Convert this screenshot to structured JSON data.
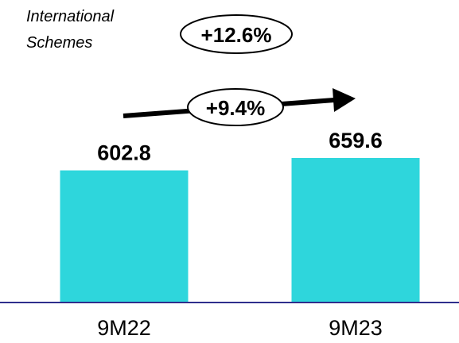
{
  "subtitle": {
    "line1": "International",
    "line2": "Schemes"
  },
  "total_growth": "+12.6%",
  "period_growth": "+9.4%",
  "colors": {
    "bar": "#2ED6DC",
    "axis": "#2E2E8C",
    "text": "#000000"
  },
  "chart_data": {
    "type": "bar",
    "categories": [
      "9M22",
      "9M23"
    ],
    "values": [
      602.8,
      659.6
    ],
    "data_labels": [
      "602.8",
      "659.6"
    ],
    "annotations": [
      "+12.6%",
      "+9.4%"
    ],
    "title": "",
    "xlabel": "",
    "ylabel": "",
    "ylim": [
      0,
      659.6
    ],
    "grid": false,
    "legend": "none"
  }
}
